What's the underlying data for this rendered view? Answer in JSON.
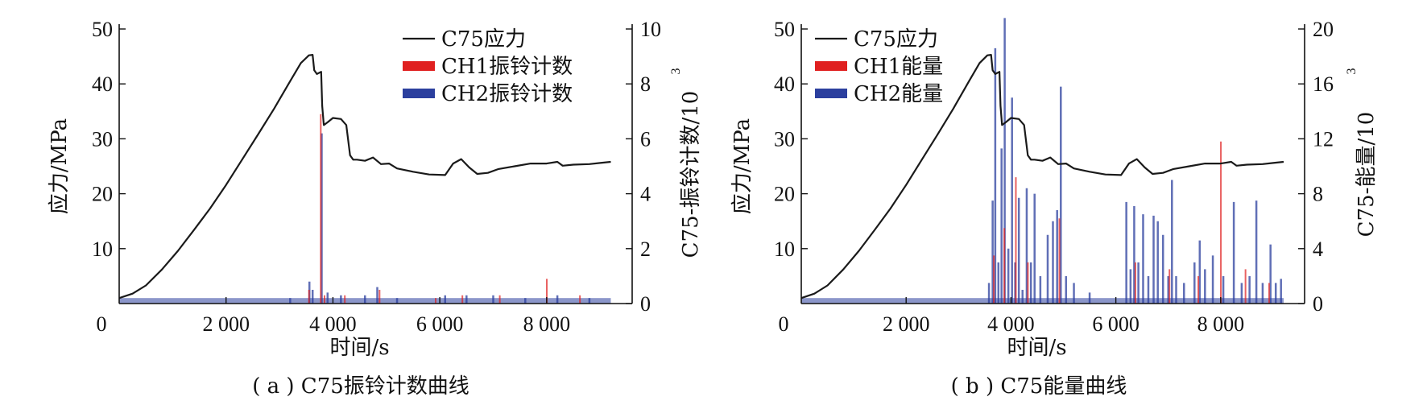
{
  "colors": {
    "stress": "#1a1a1a",
    "ch1": "#e02020",
    "ch2": "#2b3f9e",
    "axis": "#111111"
  },
  "chart_data": [
    {
      "type": "line",
      "caption": "( a ) C75振铃计数曲线",
      "xlabel": "时间/s",
      "ylabel": "应力/MPa",
      "y2label": "C75-振铃计数/10",
      "y2_exponent": "3",
      "xlim": [
        0,
        9600
      ],
      "ylim": [
        0,
        50
      ],
      "y2lim": [
        0,
        10
      ],
      "x_ticks": [
        {
          "v": 0,
          "label": "0"
        },
        {
          "v": 2000,
          "label": "2 000"
        },
        {
          "v": 4000,
          "label": "4 000"
        },
        {
          "v": 6000,
          "label": "6 000"
        },
        {
          "v": 8000,
          "label": "8 000"
        }
      ],
      "y_ticks": [
        {
          "v": 10,
          "label": "10"
        },
        {
          "v": 20,
          "label": "20"
        },
        {
          "v": 30,
          "label": "30"
        },
        {
          "v": 40,
          "label": "40"
        },
        {
          "v": 50,
          "label": "50"
        }
      ],
      "y2_ticks": [
        {
          "v": 0,
          "label": "0"
        },
        {
          "v": 2,
          "label": "2"
        },
        {
          "v": 4,
          "label": "4"
        },
        {
          "v": 6,
          "label": "6"
        },
        {
          "v": 8,
          "label": "8"
        },
        {
          "v": 10,
          "label": "10"
        }
      ],
      "legend": [
        {
          "name": "C75应力",
          "kind": "line",
          "color": "#1a1a1a"
        },
        {
          "name": "CH1振铃计数",
          "kind": "box",
          "color": "#e02020"
        },
        {
          "name": "CH2振铃计数",
          "kind": "box",
          "color": "#2b3f9e"
        }
      ],
      "stress_series": {
        "name": "C75应力",
        "x": [
          0,
          250,
          500,
          800,
          1100,
          1400,
          1700,
          2000,
          2300,
          2600,
          2900,
          3200,
          3400,
          3550,
          3620,
          3650,
          3700,
          3780,
          3800,
          3830,
          3900,
          4000,
          4150,
          4250,
          4320,
          4380,
          4450,
          4600,
          4750,
          4900,
          5050,
          5200,
          5500,
          5800,
          6100,
          6250,
          6400,
          6550,
          6700,
          6900,
          7100,
          7400,
          7700,
          8000,
          8200,
          8300,
          8500,
          8800,
          9000,
          9200
        ],
        "y": [
          1,
          1.8,
          3.3,
          6.2,
          9.6,
          13.4,
          17.3,
          21.6,
          26.2,
          30.8,
          35.5,
          40.5,
          43.8,
          45.2,
          45.3,
          42.5,
          41.8,
          42.2,
          36,
          32.5,
          33,
          33.8,
          33.6,
          32.5,
          27,
          26.2,
          26.2,
          26,
          26.6,
          25.4,
          25.5,
          24.6,
          24,
          23.5,
          23.4,
          25.5,
          26.3,
          24.8,
          23.6,
          23.8,
          24.5,
          25,
          25.5,
          25.5,
          25.8,
          25.1,
          25.3,
          25.4,
          25.6,
          25.8
        ]
      },
      "ch1_spikes": {
        "name": "CH1振铃计数",
        "x": [
          3530,
          3750,
          3820,
          4200,
          4850,
          5900,
          6400,
          7100,
          7980,
          8600
        ],
        "y": [
          0.5,
          6.9,
          0.3,
          0.3,
          0.5,
          0.2,
          0.3,
          0.3,
          0.9,
          0.3
        ]
      },
      "ch2_spikes": {
        "name": "CH2振铃计数",
        "x": [
          3200,
          3560,
          3620,
          3790,
          3900,
          4150,
          4600,
          4830,
          5200,
          6100,
          6500,
          7000,
          7600,
          8200,
          8800
        ],
        "y": [
          0.2,
          0.8,
          0.5,
          6.2,
          0.4,
          0.3,
          0.3,
          0.6,
          0.2,
          0.3,
          0.3,
          0.3,
          0.2,
          0.3,
          0.2
        ]
      }
    },
    {
      "type": "line",
      "caption": "( b ) C75能量曲线",
      "xlabel": "时间/s",
      "ylabel": "应力/MPa",
      "y2label": "C75-能量/10",
      "y2_exponent": "3",
      "xlim": [
        0,
        9600
      ],
      "ylim": [
        0,
        50
      ],
      "y2lim": [
        0,
        20
      ],
      "x_ticks": [
        {
          "v": 0,
          "label": "0"
        },
        {
          "v": 2000,
          "label": "2 000"
        },
        {
          "v": 4000,
          "label": "4 000"
        },
        {
          "v": 6000,
          "label": "6 000"
        },
        {
          "v": 8000,
          "label": "8 000"
        }
      ],
      "y_ticks": [
        {
          "v": 10,
          "label": "10"
        },
        {
          "v": 20,
          "label": "20"
        },
        {
          "v": 30,
          "label": "30"
        },
        {
          "v": 40,
          "label": "40"
        },
        {
          "v": 50,
          "label": "50"
        }
      ],
      "y2_ticks": [
        {
          "v": 0,
          "label": "0"
        },
        {
          "v": 4,
          "label": "4"
        },
        {
          "v": 8,
          "label": "8"
        },
        {
          "v": 12,
          "label": "12"
        },
        {
          "v": 16,
          "label": "16"
        },
        {
          "v": 20,
          "label": "20"
        }
      ],
      "legend": [
        {
          "name": "C75应力",
          "kind": "line",
          "color": "#1a1a1a"
        },
        {
          "name": "CH1能量",
          "kind": "box",
          "color": "#e02020"
        },
        {
          "name": "CH2能量",
          "kind": "box",
          "color": "#2b3f9e"
        }
      ],
      "stress_series": {
        "name": "C75应力",
        "x": [
          0,
          250,
          500,
          800,
          1100,
          1400,
          1700,
          2000,
          2300,
          2600,
          2900,
          3200,
          3400,
          3550,
          3620,
          3650,
          3700,
          3780,
          3800,
          3830,
          3900,
          4000,
          4150,
          4250,
          4320,
          4380,
          4450,
          4600,
          4750,
          4900,
          5050,
          5200,
          5500,
          5800,
          6100,
          6250,
          6400,
          6550,
          6700,
          6900,
          7100,
          7400,
          7700,
          8000,
          8200,
          8300,
          8500,
          8800,
          9000,
          9200
        ],
        "y": [
          1,
          1.8,
          3.3,
          6.2,
          9.6,
          13.4,
          17.3,
          21.6,
          26.2,
          30.8,
          35.5,
          40.5,
          43.8,
          45.2,
          45.3,
          42.5,
          41.8,
          42.2,
          36,
          32.5,
          33,
          33.8,
          33.6,
          32.5,
          27,
          26.2,
          26.2,
          26,
          26.6,
          25.4,
          25.5,
          24.6,
          24,
          23.5,
          23.4,
          25.5,
          26.3,
          24.8,
          23.6,
          23.8,
          24.5,
          25,
          25.5,
          25.5,
          25.8,
          25.1,
          25.3,
          25.4,
          25.6,
          25.8
        ]
      },
      "ch1_spikes": {
        "name": "CH1能量",
        "x": [
          3650,
          3850,
          4070,
          4300,
          4900,
          6350,
          7000,
          7550,
          7980,
          8450,
          8900
        ],
        "y": [
          3.5,
          5.5,
          9.2,
          3.0,
          6.2,
          3.0,
          2.5,
          2.0,
          11.8,
          2.5,
          1.5
        ]
      },
      "ch2_spikes": {
        "name": "CH2能量",
        "x": [
          3580,
          3650,
          3700,
          3760,
          3820,
          3880,
          3950,
          4020,
          4080,
          4150,
          4220,
          4300,
          4380,
          4450,
          4560,
          4700,
          4800,
          4880,
          4950,
          5050,
          5200,
          5500,
          6200,
          6280,
          6350,
          6430,
          6520,
          6620,
          6720,
          6800,
          6900,
          7000,
          7070,
          7150,
          7300,
          7500,
          7600,
          7700,
          7850,
          8050,
          8250,
          8400,
          8550,
          8680,
          8800,
          8950,
          9050,
          9150
        ],
        "y": [
          1.5,
          7.5,
          18.6,
          3.0,
          11.3,
          20.8,
          4.0,
          15.0,
          3.0,
          7.7,
          1.0,
          8.4,
          3.0,
          8.0,
          2.0,
          5.0,
          6.0,
          6.8,
          15.8,
          2.0,
          1.5,
          0.8,
          7.4,
          2.5,
          7.1,
          3.0,
          6.5,
          2.0,
          6.4,
          6.0,
          5.0,
          2.0,
          9.0,
          2.0,
          1.5,
          3.0,
          4.6,
          2.5,
          3.5,
          2.0,
          7.4,
          1.5,
          2.0,
          7.5,
          1.5,
          4.3,
          1.5,
          1.8
        ]
      }
    }
  ]
}
